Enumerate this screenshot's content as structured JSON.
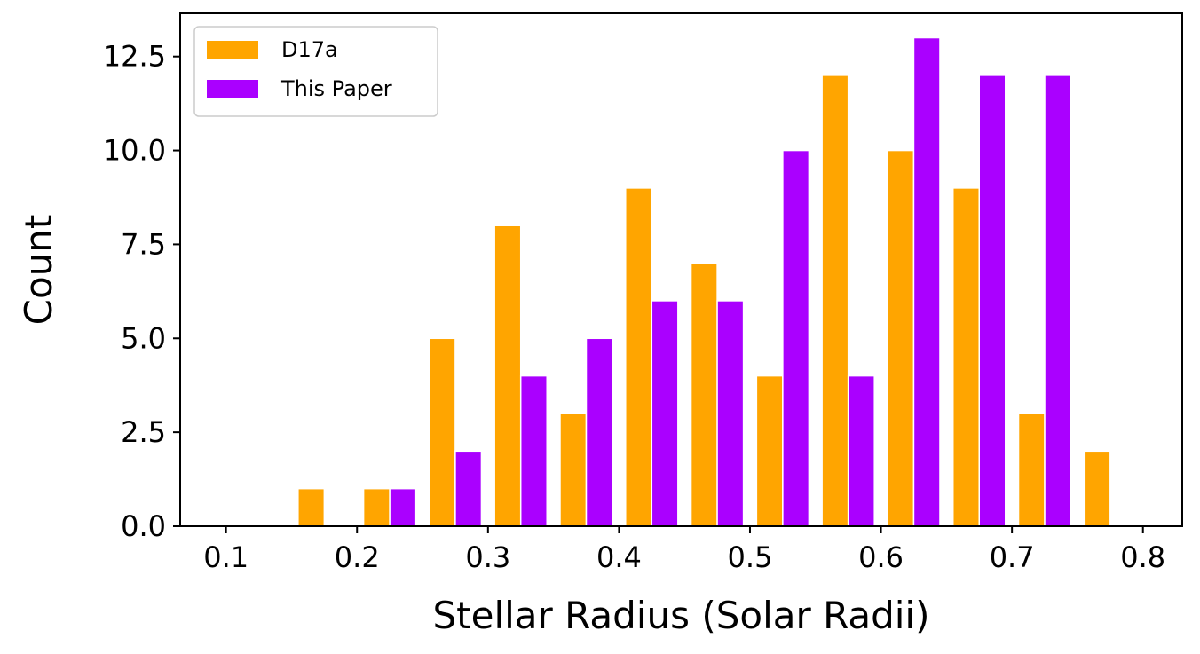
{
  "chart_data": {
    "type": "bar",
    "title": "",
    "xlabel": "Stellar Radius (Solar Radii)",
    "ylabel": "Count",
    "xlim": [
      0.065,
      0.83
    ],
    "ylim": [
      0.0,
      13.65
    ],
    "xticks": [
      "0.1",
      "0.2",
      "0.3",
      "0.4",
      "0.5",
      "0.6",
      "0.7",
      "0.8"
    ],
    "xtick_values": [
      0.1,
      0.2,
      0.3,
      0.4,
      0.5,
      0.6,
      0.7,
      0.8
    ],
    "yticks": [
      "0.0",
      "2.5",
      "5.0",
      "7.5",
      "10.0",
      "12.5"
    ],
    "ytick_values": [
      0.0,
      2.5,
      5.0,
      7.5,
      10.0,
      12.5
    ],
    "bin_width": 0.05,
    "grid": false,
    "legend_position": "top-left",
    "series": [
      {
        "name": "D17a",
        "color": "#FFA500",
        "bins": [
          [
            0.15,
            0.2,
            1
          ],
          [
            0.2,
            0.25,
            1
          ],
          [
            0.25,
            0.3,
            5
          ],
          [
            0.3,
            0.35,
            8
          ],
          [
            0.35,
            0.4,
            3
          ],
          [
            0.4,
            0.45,
            9
          ],
          [
            0.45,
            0.5,
            7
          ],
          [
            0.5,
            0.55,
            4
          ],
          [
            0.55,
            0.6,
            12
          ],
          [
            0.6,
            0.65,
            10
          ],
          [
            0.65,
            0.7,
            9
          ],
          [
            0.7,
            0.75,
            3
          ],
          [
            0.75,
            0.8,
            2
          ]
        ]
      },
      {
        "name": "This Paper",
        "color": "#AA00FF",
        "bins": [
          [
            0.2,
            0.25,
            1
          ],
          [
            0.25,
            0.3,
            2
          ],
          [
            0.3,
            0.35,
            4
          ],
          [
            0.35,
            0.4,
            5
          ],
          [
            0.4,
            0.45,
            6
          ],
          [
            0.45,
            0.5,
            6
          ],
          [
            0.5,
            0.55,
            10
          ],
          [
            0.55,
            0.6,
            4
          ],
          [
            0.6,
            0.65,
            13
          ],
          [
            0.65,
            0.7,
            12
          ],
          [
            0.7,
            0.75,
            12
          ]
        ]
      }
    ]
  }
}
